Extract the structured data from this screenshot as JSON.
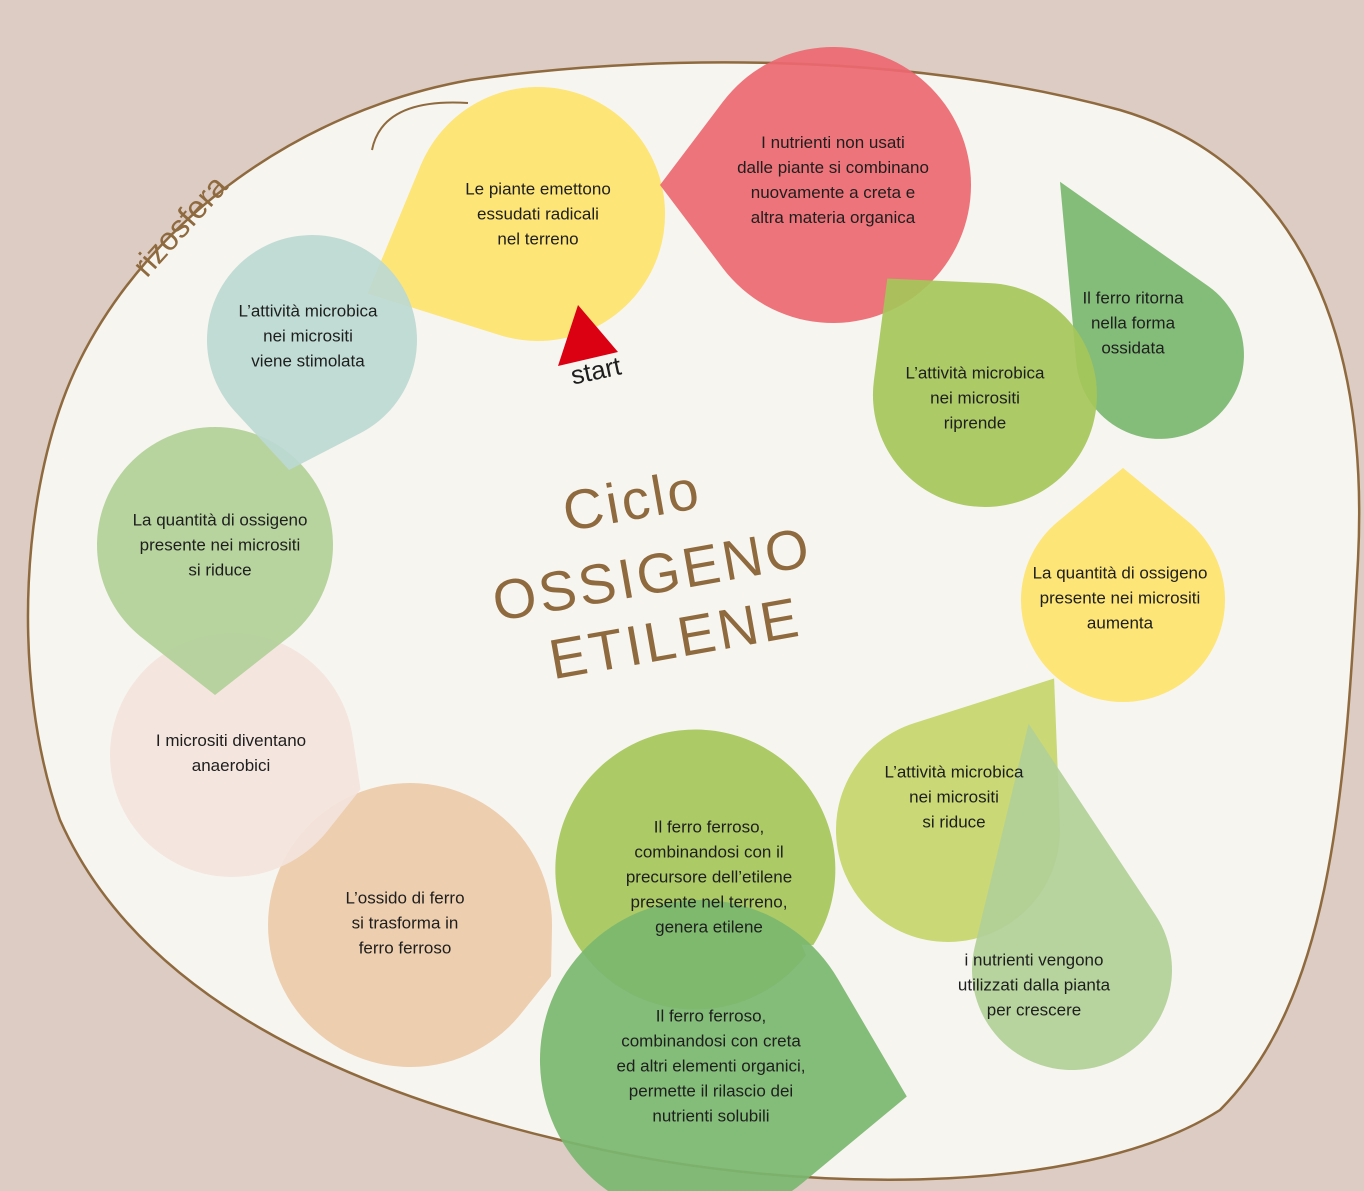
{
  "colors": {
    "background": "#dcccc4",
    "ellipse_fill": "#f7f5f0",
    "ellipse_stroke": "#8e6a3e",
    "title": "#8e6a3e",
    "start_arrow": "#dc0013"
  },
  "title": {
    "line1": "Ciclo",
    "line2": "OSSIGENO",
    "line3": "ETILENE"
  },
  "region_label": "rizosfera",
  "start_label": "start",
  "steps": [
    {
      "text": "Le piante emettono\nessudati radicali\nnel terreno",
      "color": "#fde36c"
    },
    {
      "text": "I nutrienti non usati\ndalle piante si combinano\nnuovamente a creta e\naltra materia organica",
      "color": "#ec6870"
    },
    {
      "text": "Il ferro ritorna\nnella forma\nossidata",
      "color": "#79b76f"
    },
    {
      "text": "L’attività microbica\nnei micrositi\nriprende",
      "color": "#a5c65a"
    },
    {
      "text": "La quantità di ossigeno\npresente nei micrositi\naumenta",
      "color": "#fde36c"
    },
    {
      "text": "L’attività microbica\nnei micrositi\nsi riduce",
      "color": "#c5d56a"
    },
    {
      "text": "i nutrienti vengono\nutilizzati dalla pianta\nper crescere",
      "color": "#b1d098"
    },
    {
      "text": "Il ferro ferroso,\ncombinandosi con il\nprecursore dell’etilene\npresente nel terreno,\ngenera etilene",
      "color": "#a5c65a"
    },
    {
      "text": "Il ferro ferroso,\ncombinandosi con creta\ned altri elementi organici,\npermette il rilascio dei\nnutrienti solubili",
      "color": "#79b76f"
    },
    {
      "text": "L’ossido di ferro\nsi trasforma in\nferro ferroso",
      "color": "#eccaa9"
    },
    {
      "text": "I micrositi diventano\nanaerobici",
      "color": "#f3e4dc"
    },
    {
      "text": "La quantità di ossigeno\npresente nei micrositi\nsi riduce",
      "color": "#b1d098"
    },
    {
      "text": "L’attività microbica\nnei micrositi\nviene stimolata",
      "color": "#bcd9d3"
    }
  ]
}
